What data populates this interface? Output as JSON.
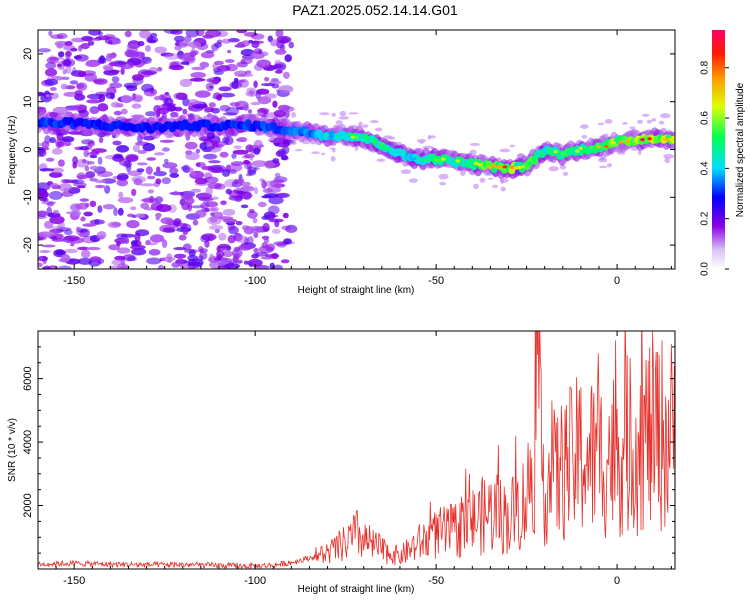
{
  "title": "PAZ1.2025.052.14.14.G01",
  "chart_data": [
    {
      "type": "heatmap",
      "xlabel": "Height of straight line (km)",
      "ylabel": "Frequency (Hz)",
      "xlim": [
        -160,
        16
      ],
      "ylim": [
        -25,
        25
      ],
      "xticks": [
        -150,
        -100,
        -50,
        0
      ],
      "yticks": [
        -20,
        -10,
        0,
        10,
        20
      ],
      "colorbar": {
        "label": "Normalized spectral amplitude",
        "range": [
          0,
          0.95
        ],
        "ticks": [
          0.0,
          0.2,
          0.4,
          0.6,
          0.8
        ]
      },
      "ridge": {
        "x": [
          -158,
          -150,
          -140,
          -130,
          -120,
          -110,
          -100,
          -95,
          -90,
          -85,
          -80,
          -75,
          -70,
          -65,
          -60,
          -55,
          -50,
          -45,
          -40,
          -35,
          -30,
          -25,
          -20,
          -15,
          -10,
          -5,
          0,
          5,
          10,
          16
        ],
        "y": [
          5.5,
          5.5,
          5.0,
          4.5,
          5.0,
          5.0,
          5.0,
          4.5,
          4.0,
          3.5,
          3.0,
          3.0,
          2.5,
          1.0,
          -1.0,
          -2.0,
          -2.0,
          -2.5,
          -3.0,
          -3.5,
          -4.0,
          -3.5,
          0.0,
          -1.0,
          0.0,
          0.5,
          1.5,
          2.0,
          2.5,
          2.0
        ],
        "amplitude": [
          0.25,
          0.22,
          0.2,
          0.2,
          0.2,
          0.22,
          0.25,
          0.28,
          0.3,
          0.35,
          0.45,
          0.55,
          0.6,
          0.55,
          0.45,
          0.5,
          0.6,
          0.6,
          0.7,
          0.75,
          0.8,
          0.7,
          0.55,
          0.6,
          0.65,
          0.7,
          0.8,
          0.9,
          0.9,
          0.85
        ]
      }
    },
    {
      "type": "line",
      "xlabel": "Height of straight line (km)",
      "ylabel": "SNR (10 * v/v)",
      "xlim": [
        -160,
        16
      ],
      "ylim": [
        0,
        7500
      ],
      "xticks": [
        -150,
        -100,
        -50,
        0
      ],
      "yticks": [
        2000,
        4000,
        6000
      ],
      "color": "#e8302a",
      "series": [
        {
          "x": [
            -160,
            -150,
            -140,
            -130,
            -120,
            -110,
            -100,
            -95,
            -90,
            -85,
            -80,
            -75,
            -72,
            -70,
            -65,
            -60,
            -55,
            -50,
            -45,
            -40,
            -35,
            -30,
            -25,
            -22,
            -20,
            -15,
            -12,
            -10,
            -5,
            0,
            5,
            10,
            16
          ],
          "values": [
            150,
            180,
            150,
            130,
            140,
            110,
            90,
            120,
            200,
            350,
            500,
            800,
            1100,
            900,
            600,
            400,
            800,
            1100,
            1200,
            1500,
            1800,
            1600,
            2200,
            4500,
            2700,
            3100,
            3400,
            3600,
            3500,
            3700,
            4000,
            4300,
            4200
          ]
        }
      ]
    }
  ]
}
